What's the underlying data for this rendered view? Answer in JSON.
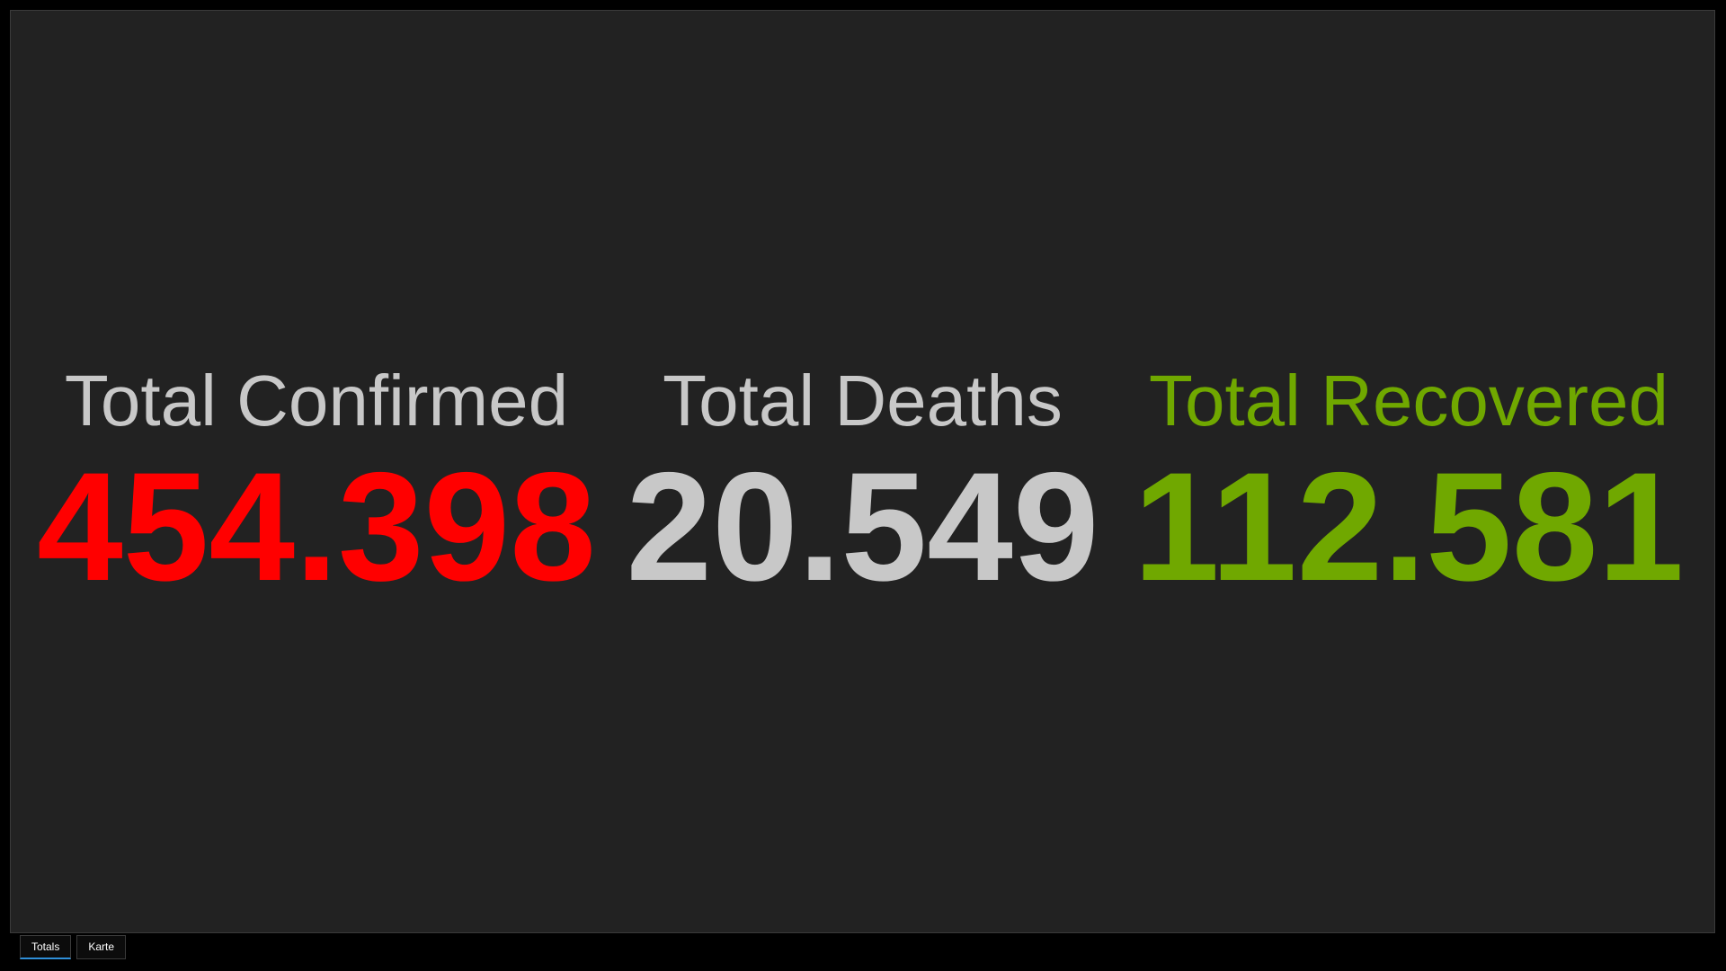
{
  "stats": [
    {
      "label": "Total Confirmed",
      "value": "454.398",
      "color": "#ff0000",
      "label_color": "#c8c8c8"
    },
    {
      "label": "Total Deaths",
      "value": "20.549",
      "color": "#c8c8c8",
      "label_color": "#c8c8c8"
    },
    {
      "label": "Total Recovered",
      "value": "112.581",
      "color": "#70a800",
      "label_color": "#70a800"
    }
  ],
  "tabs": [
    {
      "label": "Totals",
      "active": true
    },
    {
      "label": "Karte",
      "active": false
    }
  ],
  "colors": {
    "background": "#222222",
    "tab_accent": "#2f8fd8"
  }
}
